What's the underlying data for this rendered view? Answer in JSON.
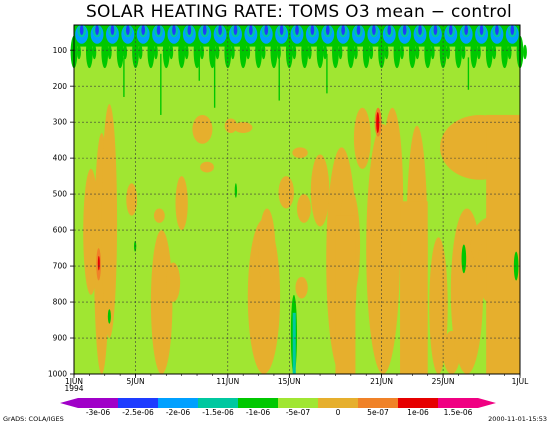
{
  "chart_data": {
    "type": "heatmap",
    "title": "SOLAR HEATING RATE: TOMS O3 mean − control",
    "y_axis": {
      "ticks": [
        100,
        200,
        300,
        400,
        500,
        600,
        700,
        800,
        900,
        1000
      ],
      "range": [
        30,
        1000
      ]
    },
    "x_axis": {
      "ticks": [
        {
          "day": 1,
          "label": "1JUN",
          "sublabel": "1994"
        },
        {
          "day": 5,
          "label": "5JUN"
        },
        {
          "day": 11,
          "label": "11JUN"
        },
        {
          "day": 15,
          "label": "15JUN"
        },
        {
          "day": 21,
          "label": "21JUN"
        },
        {
          "day": 25,
          "label": "25JUN"
        },
        {
          "day": 30,
          "label": "1JUL"
        }
      ],
      "range": [
        1,
        30
      ]
    },
    "grid": true,
    "background_level": "-5e-07 to 0",
    "colorbar": {
      "colors": [
        "#a000c8",
        "#1e3cff",
        "#00a0ff",
        "#00c8a0",
        "#00c800",
        "#a0e632",
        "#e6af2d",
        "#f08228",
        "#e60000",
        "#f00082"
      ],
      "labels": [
        "-3e-06",
        "-2.5e-06",
        "-2e-06",
        "-1.5e-06",
        "-1e-06",
        "-5e-07",
        "0",
        "5e-07",
        "1e-06",
        "1.5e-06"
      ]
    },
    "colors": {
      "background_level": "#a0e632",
      "positive_1": "#e6af2d",
      "positive_2": "#f08228",
      "positive_3": "#e60000",
      "negative_1": "#00c800",
      "negative_2": "#00c8a0",
      "negative_3": "#00a0ff",
      "negative_4": "#1e3cff"
    },
    "regions": {
      "top_band": "negative values up to -2.5e-06 near 30-100 hPa with diurnal striping",
      "positive_patches": "0 to 5e-07 scattered through 300-1000 hPa",
      "peak_positive": "about 1e-06 near 21JUN at 300 hPa and near 3JUN at 700 hPa"
    }
  },
  "footer": {
    "left": "GrADS: COLA/IGES",
    "right": "2000-11-01-15:53"
  }
}
